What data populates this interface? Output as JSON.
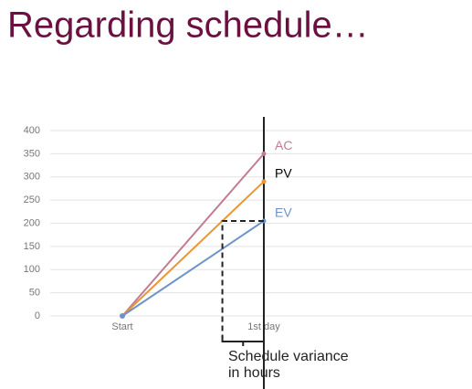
{
  "chart_data": {
    "type": "line",
    "title": "Regarding schedule…",
    "categories": [
      "Start",
      "1st day"
    ],
    "series": [
      {
        "name": "AC",
        "color": "#c27b92",
        "label_color": "#c27b92",
        "values": [
          0,
          350
        ]
      },
      {
        "name": "PV",
        "color": "#eb9630",
        "label_color": "#000000",
        "values": [
          0,
          290
        ]
      },
      {
        "name": "EV",
        "color": "#6f93c9",
        "label_color": "#6f93c9",
        "values": [
          0,
          205
        ]
      }
    ],
    "ylim": [
      0,
      400
    ],
    "yticks": [
      0,
      50,
      100,
      150,
      200,
      250,
      300,
      350,
      400
    ],
    "grid": true,
    "annotation": [
      "Schedule variance",
      "in hours"
    ]
  }
}
